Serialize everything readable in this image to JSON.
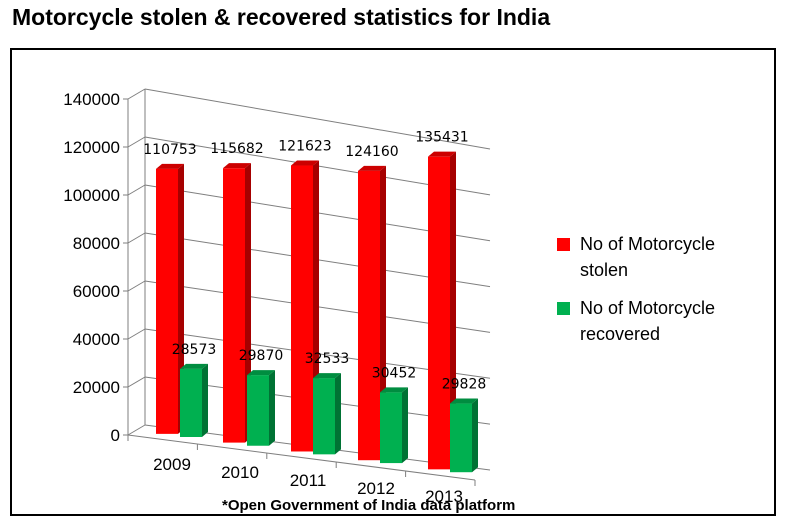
{
  "title": "Motorcycle stolen & recovered statistics for India",
  "footnote": "*Open Government of India data platform",
  "colors": {
    "stolen": "#ff0000",
    "recovered": "#00b050"
  },
  "chart_data": {
    "type": "bar",
    "categories": [
      "2009",
      "2010",
      "2011",
      "2012",
      "2013"
    ],
    "series": [
      {
        "name": "No of Motorcycle stolen",
        "values": [
          110753,
          115682,
          121623,
          124160,
          135431
        ]
      },
      {
        "name": "No of Motorcycle recovered",
        "values": [
          28573,
          29870,
          32533,
          30452,
          29828
        ]
      }
    ],
    "ylim": [
      0,
      140000
    ],
    "yticks": [
      "0",
      "20000",
      "40000",
      "60000",
      "80000",
      "100000",
      "120000",
      "140000"
    ],
    "data_labels": {
      "stolen": [
        "110753",
        "115682",
        "121623",
        "124160",
        "135431"
      ],
      "recovered": [
        "28573",
        "29870",
        "32533",
        "30452",
        "29828"
      ]
    },
    "legend": {
      "position": "right",
      "items": [
        {
          "lines": [
            "No of Motorcycle",
            "stolen"
          ]
        },
        {
          "lines": [
            "No of Motorcycle",
            "recovered"
          ]
        }
      ]
    },
    "grid": true,
    "style": "3d-column"
  }
}
